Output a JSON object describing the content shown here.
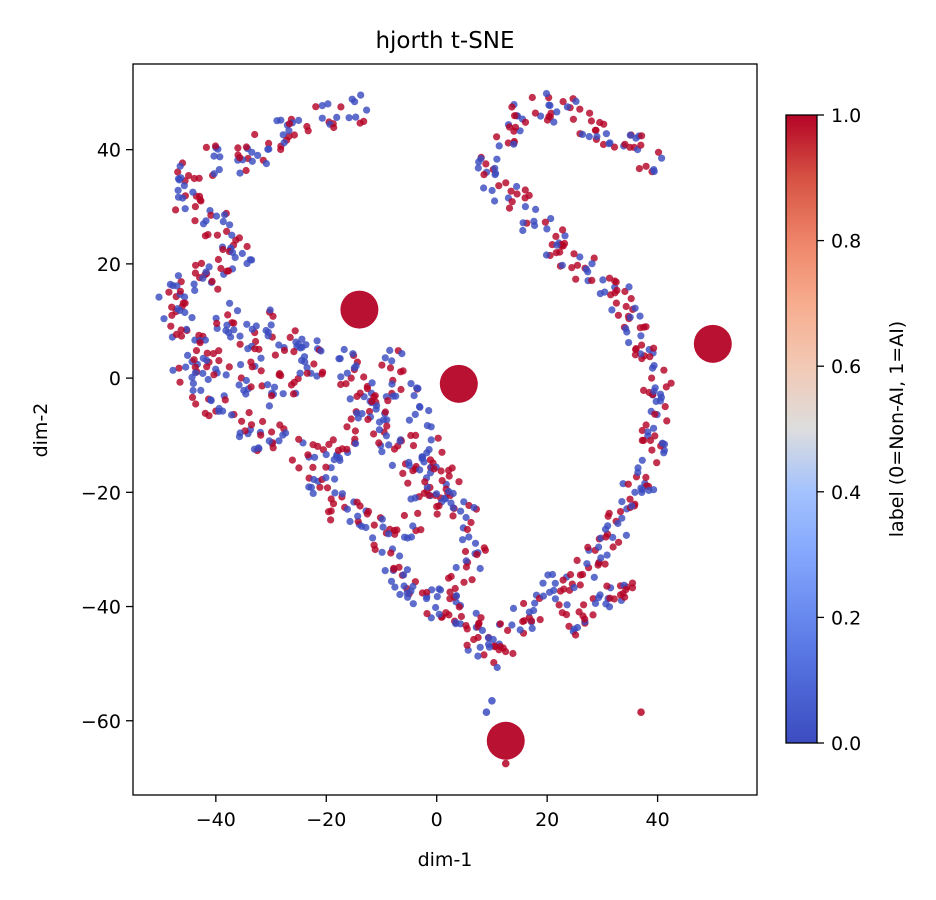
{
  "chart_data": {
    "type": "scatter",
    "title": "hjorth t-SNE",
    "xlabel": "dim-1",
    "ylabel": "dim-2",
    "xlim": [
      -55,
      58
    ],
    "ylim": [
      -73,
      55
    ],
    "xticks": [
      -40,
      -20,
      0,
      20,
      40
    ],
    "yticks": [
      -60,
      -40,
      -20,
      0,
      20,
      40
    ],
    "xtick_labels": [
      "−40",
      "−20",
      "0",
      "20",
      "40"
    ],
    "ytick_labels": [
      "−60",
      "−40",
      "−20",
      "0",
      "20",
      "40"
    ],
    "grid": false,
    "legend": "none",
    "colorbar": {
      "label": "label (0=Non-AI, 1=AI)",
      "range": [
        0.0,
        1.0
      ],
      "ticks": [
        0.0,
        0.2,
        0.4,
        0.6,
        0.8,
        1.0
      ],
      "tick_labels": [
        "0.0",
        "0.2",
        "0.4",
        "0.6",
        "0.8",
        "1.0"
      ],
      "colormap": "coolwarm",
      "low_color": "#3b4cc0",
      "mid_color": "#dddddd",
      "high_color": "#b40426"
    },
    "large_points": [
      {
        "x": -14,
        "y": 12,
        "label": 1
      },
      {
        "x": 4,
        "y": -1,
        "label": 1
      },
      {
        "x": 50,
        "y": 6,
        "label": 1
      },
      {
        "x": 12.5,
        "y": -63.5,
        "label": 1
      }
    ],
    "outlier_points": [
      {
        "x": 37,
        "y": -58.5,
        "label": 1
      },
      {
        "x": 12.5,
        "y": -67.5,
        "label": 1
      },
      {
        "x": 10,
        "y": -56.5,
        "label": 0
      },
      {
        "x": 9,
        "y": -58.5,
        "label": 0
      }
    ],
    "clusters": [
      {
        "label": "arc",
        "points": [
          [
            -15,
            47
          ],
          [
            -20,
            46
          ],
          [
            -25,
            44
          ],
          [
            -29,
            43
          ],
          [
            -32,
            40
          ],
          [
            -35,
            38
          ],
          [
            -40,
            38
          ],
          [
            -45,
            36
          ],
          [
            -46,
            32
          ],
          [
            -43,
            30
          ],
          [
            -40,
            27
          ],
          [
            -38,
            25
          ],
          [
            -36,
            21
          ],
          [
            -39,
            18
          ],
          [
            -43,
            18
          ],
          [
            -46,
            16
          ],
          [
            -48,
            13
          ],
          [
            -47,
            10
          ],
          [
            -44,
            7
          ],
          [
            -42,
            4
          ],
          [
            -40,
            2
          ],
          [
            -45,
            1
          ],
          [
            -43,
            -2
          ],
          [
            -40,
            -5
          ],
          [
            -36,
            -8
          ],
          [
            -32,
            -10
          ],
          [
            -28,
            -11
          ],
          [
            -24,
            -13
          ],
          [
            -21,
            -18
          ],
          [
            -19,
            -22
          ],
          [
            -15,
            -24
          ],
          [
            -12,
            -25
          ],
          [
            -10,
            -28
          ],
          [
            -8,
            -33
          ],
          [
            -6,
            -35
          ],
          [
            -3,
            -38
          ],
          [
            0,
            -40
          ],
          [
            3,
            -41
          ],
          [
            6,
            -42
          ],
          [
            8,
            -46
          ],
          [
            10,
            -48
          ],
          [
            12,
            -46
          ],
          [
            15,
            -43
          ],
          [
            18,
            -40
          ],
          [
            21,
            -37
          ],
          [
            24,
            -35
          ],
          [
            27,
            -33
          ],
          [
            29,
            -30
          ],
          [
            32,
            -27
          ],
          [
            34,
            -24
          ],
          [
            36,
            -20
          ],
          [
            38,
            -17
          ],
          [
            39,
            -13
          ],
          [
            40,
            -9
          ],
          [
            41,
            -5
          ],
          [
            40,
            -1
          ],
          [
            38,
            3
          ],
          [
            36,
            7
          ],
          [
            35,
            11
          ],
          [
            33,
            14
          ],
          [
            30,
            16
          ],
          [
            27,
            19
          ],
          [
            24,
            22
          ],
          [
            21,
            24
          ],
          [
            18,
            27
          ],
          [
            15,
            31
          ],
          [
            11,
            34
          ],
          [
            10,
            38
          ],
          [
            12,
            43
          ],
          [
            15,
            46
          ],
          [
            19,
            48
          ],
          [
            23,
            47
          ],
          [
            27,
            45
          ],
          [
            31,
            43
          ],
          [
            35,
            41
          ],
          [
            38,
            38
          ],
          [
            -30,
            10
          ],
          [
            -35,
            8
          ],
          [
            -38,
            11
          ],
          [
            -33,
            5
          ],
          [
            -27,
            4
          ],
          [
            -24,
            6
          ],
          [
            -22,
            2
          ],
          [
            -26,
            0
          ],
          [
            -30,
            -2
          ],
          [
            -34,
            0
          ],
          [
            -17,
            2
          ],
          [
            -15,
            -1
          ],
          [
            -13,
            -4
          ],
          [
            -11,
            -7
          ],
          [
            -9,
            -10
          ],
          [
            -6,
            -14
          ],
          [
            -3,
            -17
          ],
          [
            0,
            -19
          ],
          [
            -2,
            -22
          ],
          [
            -5,
            -25
          ],
          [
            -14,
            -9
          ],
          [
            -17,
            -12
          ],
          [
            -19,
            -15
          ],
          [
            -8,
            2
          ],
          [
            -6,
            -1
          ],
          [
            -10,
            -3
          ],
          [
            -3,
            -8
          ],
          [
            -1,
            -12
          ],
          [
            1,
            -16
          ],
          [
            3,
            -20
          ],
          [
            5,
            -24
          ],
          [
            7,
            -28
          ],
          [
            6,
            -33
          ],
          [
            3,
            -36
          ],
          [
            25,
            -42
          ],
          [
            28,
            -40
          ],
          [
            31,
            -38
          ],
          [
            33,
            -37
          ]
        ]
      }
    ]
  }
}
